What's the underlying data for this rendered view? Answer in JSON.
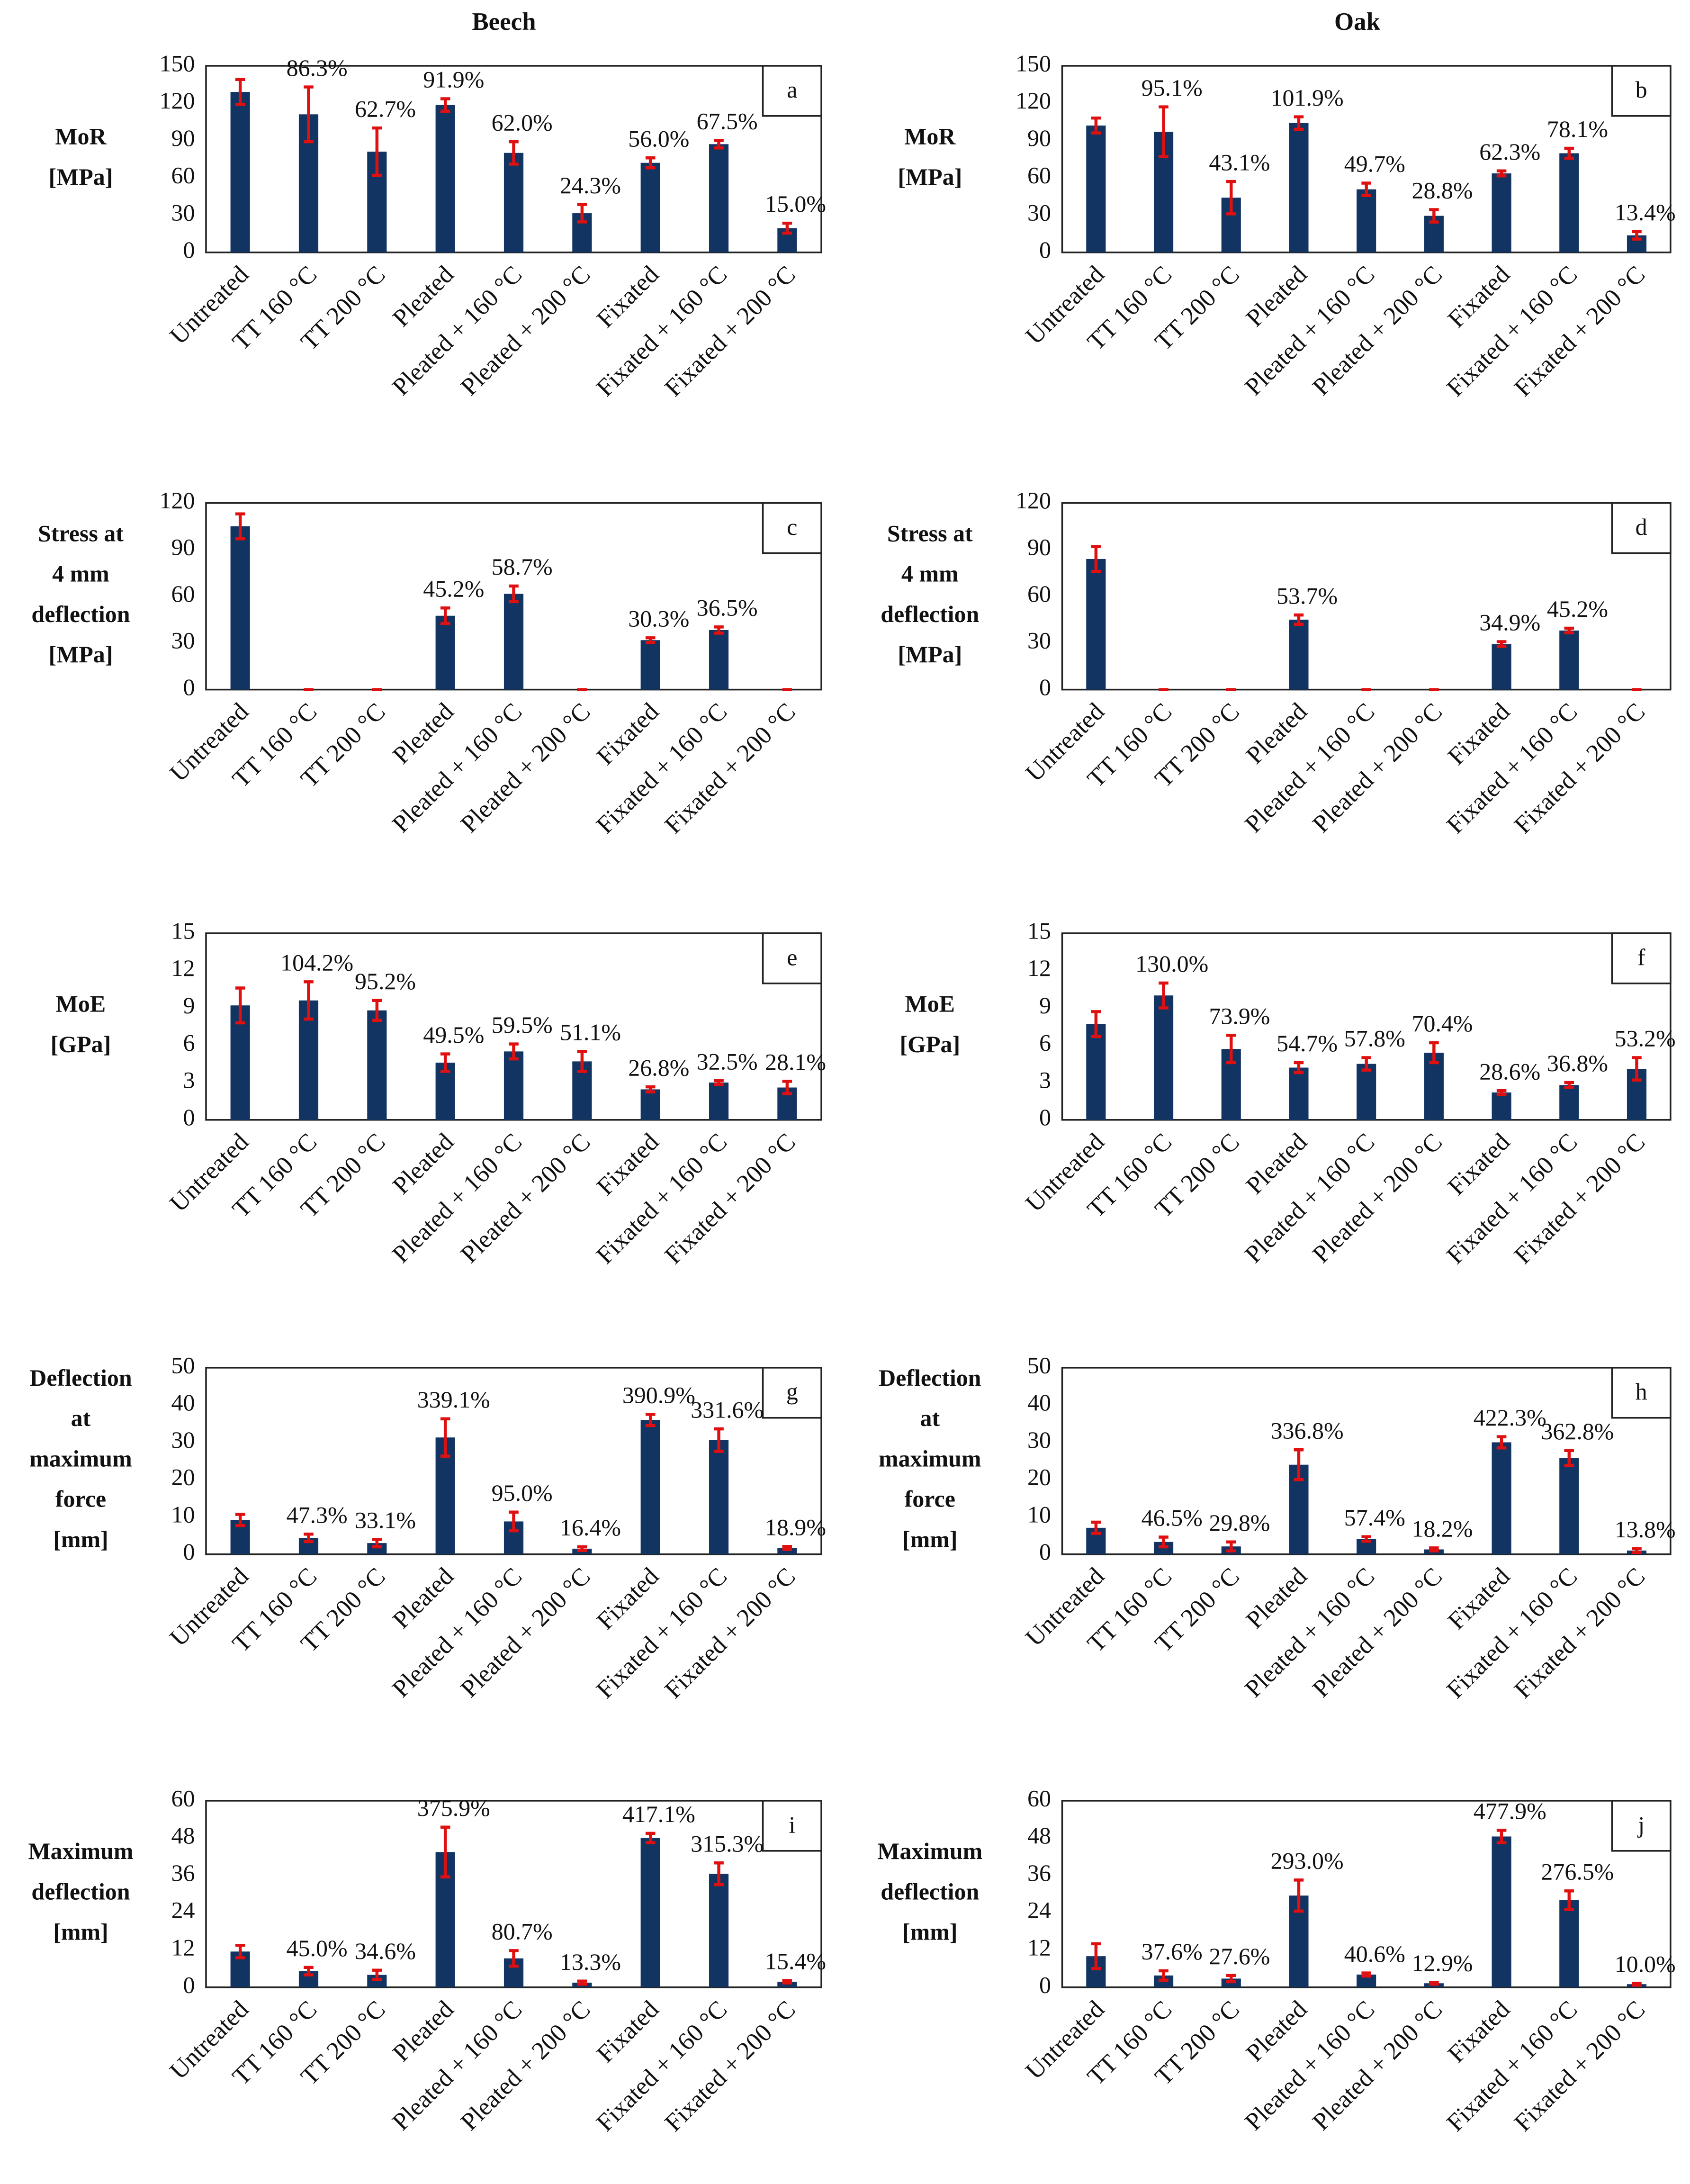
{
  "column_titles": [
    "Beech",
    "Oak"
  ],
  "chart_data": [
    {
      "type": "bar",
      "ylabel": [
        "MoR",
        "[MPa]"
      ],
      "panel_label": "a",
      "categories": [
        "Untreated",
        "TT 160 °C",
        "TT 200 °C",
        "Pleated",
        "Pleated + 160 °C",
        "Pleated + 200 °C",
        "Fixated",
        "Fixated + 160 °C",
        "Fixated + 200 °C"
      ],
      "values": [
        129,
        111,
        81,
        118.5,
        80,
        31.5,
        72,
        87,
        19.5
      ],
      "errors": [
        10,
        22,
        19,
        5,
        9,
        7,
        4,
        3,
        4
      ],
      "annotations": [
        null,
        "86.3%",
        "62.7%",
        "91.9%",
        "62.0%",
        "24.3%",
        "56.0%",
        "67.5%",
        "15.0%"
      ],
      "color": "#123462",
      "error_color": "#e01010",
      "ylim": [
        0,
        150
      ],
      "yticks": [
        0,
        30,
        60,
        90,
        120,
        150
      ]
    },
    {
      "type": "bar",
      "ylabel": [
        "MoR",
        "[MPa]"
      ],
      "panel_label": "b",
      "categories": [
        "Untreated",
        "TT 160 °C",
        "TT 200 °C",
        "Pleated",
        "Pleated + 160 °C",
        "Pleated + 200 °C",
        "Fixated",
        "Fixated + 160 °C",
        "Fixated + 200 °C"
      ],
      "values": [
        102,
        97,
        44,
        104,
        50.7,
        29.4,
        63.5,
        79.7,
        13.7
      ],
      "errors": [
        6,
        20,
        13,
        5,
        5,
        5,
        2,
        4,
        3
      ],
      "annotations": [
        null,
        "95.1%",
        "43.1%",
        "101.9%",
        "49.7%",
        "28.8%",
        "62.3%",
        "78.1%",
        "13.4%"
      ],
      "color": "#123462",
      "error_color": "#e01010",
      "ylim": [
        0,
        150
      ],
      "yticks": [
        0,
        30,
        60,
        90,
        120,
        150
      ]
    },
    {
      "type": "bar",
      "ylabel": [
        "Stress at",
        "4 mm",
        "deflection",
        "[MPa]"
      ],
      "panel_label": "c",
      "categories": [
        "Untreated",
        "TT 160 °C",
        "TT 200 °C",
        "Pleated",
        "Pleated + 160 °C",
        "Pleated + 200 °C",
        "Fixated",
        "Fixated + 160 °C",
        "Fixated + 200 °C"
      ],
      "values": [
        105,
        0,
        0,
        47.5,
        61.6,
        0,
        31.8,
        38.3,
        0
      ],
      "errors": [
        8,
        0,
        0,
        5,
        5,
        0,
        1.5,
        2,
        0
      ],
      "annotations": [
        null,
        null,
        null,
        "45.2%",
        "58.7%",
        null,
        "30.3%",
        "36.5%",
        null
      ],
      "color": "#123462",
      "error_color": "#e01010",
      "ylim": [
        0,
        120
      ],
      "yticks": [
        0,
        30,
        60,
        90,
        120
      ]
    },
    {
      "type": "bar",
      "ylabel": [
        "Stress at",
        "4 mm",
        "deflection",
        "[MPa]"
      ],
      "panel_label": "d",
      "categories": [
        "Untreated",
        "TT 160 °C",
        "TT 200 °C",
        "Pleated",
        "Pleated + 160 °C",
        "Pleated + 200 °C",
        "Fixated",
        "Fixated + 160 °C",
        "Fixated + 200 °C"
      ],
      "values": [
        84,
        0,
        0,
        45,
        0,
        0,
        29.3,
        38,
        0
      ],
      "errors": [
        8,
        0,
        0,
        3,
        0,
        0,
        1.5,
        1.5,
        0
      ],
      "annotations": [
        null,
        null,
        null,
        "53.7%",
        null,
        null,
        "34.9%",
        "45.2%",
        null
      ],
      "color": "#123462",
      "error_color": "#e01010",
      "ylim": [
        0,
        120
      ],
      "yticks": [
        0,
        30,
        60,
        90,
        120
      ]
    },
    {
      "type": "bar",
      "ylabel": [
        "MoE",
        "[GPa]"
      ],
      "panel_label": "e",
      "categories": [
        "Untreated",
        "TT 160 °C",
        "TT 200 °C",
        "Pleated",
        "Pleated + 160 °C",
        "Pleated + 200 °C",
        "Fixated",
        "Fixated + 160 °C",
        "Fixated + 200 °C"
      ],
      "values": [
        9.2,
        9.6,
        8.8,
        4.6,
        5.5,
        4.7,
        2.45,
        3.0,
        2.6
      ],
      "errors": [
        1.4,
        1.5,
        0.8,
        0.7,
        0.6,
        0.8,
        0.2,
        0.15,
        0.5
      ],
      "annotations": [
        null,
        "104.2%",
        "95.2%",
        "49.5%",
        "59.5%",
        "51.1%",
        "26.8%",
        "32.5%",
        "28.1%"
      ],
      "color": "#123462",
      "error_color": "#e01010",
      "ylim": [
        0,
        15
      ],
      "yticks": [
        0,
        3,
        6,
        9,
        12,
        15
      ]
    },
    {
      "type": "bar",
      "ylabel": [
        "MoE",
        "[GPa]"
      ],
      "panel_label": "f",
      "categories": [
        "Untreated",
        "TT 160 °C",
        "TT 200 °C",
        "Pleated",
        "Pleated + 160 °C",
        "Pleated + 200 °C",
        "Fixated",
        "Fixated + 160 °C",
        "Fixated + 200 °C"
      ],
      "values": [
        7.7,
        10,
        5.7,
        4.2,
        4.5,
        5.4,
        2.2,
        2.8,
        4.1
      ],
      "errors": [
        1,
        1,
        1.1,
        0.4,
        0.5,
        0.8,
        0.15,
        0.2,
        0.9
      ],
      "annotations": [
        null,
        "130.0%",
        "73.9%",
        "54.7%",
        "57.8%",
        "70.4%",
        "28.6%",
        "36.8%",
        "53.2%"
      ],
      "color": "#123462",
      "error_color": "#e01010",
      "ylim": [
        0,
        15
      ],
      "yticks": [
        0,
        3,
        6,
        9,
        12,
        15
      ]
    },
    {
      "type": "bar",
      "ylabel": [
        "Deflection",
        "at",
        "maximum",
        "force",
        "[mm]"
      ],
      "panel_label": "g",
      "categories": [
        "Untreated",
        "TT 160 °C",
        "TT 200 °C",
        "Pleated",
        "Pleated + 160 °C",
        "Pleated + 200 °C",
        "Fixated",
        "Fixated + 160 °C",
        "Fixated + 200 °C"
      ],
      "values": [
        9.2,
        4.4,
        3,
        31.3,
        8.8,
        1.5,
        36,
        30.6,
        1.7
      ],
      "errors": [
        1.5,
        1,
        1,
        5,
        2.5,
        0.5,
        1.5,
        3,
        0.4
      ],
      "annotations": [
        null,
        "47.3%",
        "33.1%",
        "339.1%",
        "95.0%",
        "16.4%",
        "390.9%",
        "331.6%",
        "18.9%"
      ],
      "color": "#123462",
      "error_color": "#e01010",
      "ylim": [
        0,
        50
      ],
      "yticks": [
        0,
        10,
        20,
        30,
        40,
        50
      ]
    },
    {
      "type": "bar",
      "ylabel": [
        "Deflection",
        "at",
        "maximum",
        "force",
        "[mm]"
      ],
      "panel_label": "h",
      "categories": [
        "Untreated",
        "TT 160 °C",
        "TT 200 °C",
        "Pleated",
        "Pleated + 160 °C",
        "Pleated + 200 °C",
        "Fixated",
        "Fixated + 160 °C",
        "Fixated + 200 °C"
      ],
      "values": [
        7.1,
        3.3,
        2.1,
        24,
        4.1,
        1.3,
        30,
        25.8,
        1
      ],
      "errors": [
        1.5,
        1.3,
        1.2,
        4,
        0.6,
        0.4,
        1.5,
        2,
        0.5
      ],
      "annotations": [
        null,
        "46.5%",
        "29.8%",
        "336.8%",
        "57.4%",
        "18.2%",
        "422.3%",
        "362.8%",
        "13.8%"
      ],
      "color": "#123462",
      "error_color": "#e01010",
      "ylim": [
        0,
        50
      ],
      "yticks": [
        0,
        10,
        20,
        30,
        40,
        50
      ]
    },
    {
      "type": "bar",
      "ylabel": [
        "Maximum",
        "deflection",
        "[mm]"
      ],
      "panel_label": "i",
      "categories": [
        "Untreated",
        "TT 160 °C",
        "TT 200 °C",
        "Pleated",
        "Pleated + 160 °C",
        "Pleated + 200 °C",
        "Fixated",
        "Fixated + 160 °C",
        "Fixated + 200 °C"
      ],
      "values": [
        11.5,
        5.2,
        4,
        43.5,
        9.3,
        1.5,
        48,
        36.5,
        1.8
      ],
      "errors": [
        2,
        1.2,
        1.5,
        8,
        2.5,
        0.5,
        1.5,
        3.5,
        0.4
      ],
      "annotations": [
        null,
        "45.0%",
        "34.6%",
        "375.9%",
        "80.7%",
        "13.3%",
        "417.1%",
        "315.3%",
        "15.4%"
      ],
      "color": "#123462",
      "error_color": "#e01010",
      "ylim": [
        0,
        60
      ],
      "yticks": [
        0,
        12,
        24,
        36,
        48,
        60
      ]
    },
    {
      "type": "bar",
      "ylabel": [
        "Maximum",
        "deflection",
        "[mm]"
      ],
      "panel_label": "j",
      "categories": [
        "Untreated",
        "TT 160 °C",
        "TT 200 °C",
        "Pleated",
        "Pleated + 160 °C",
        "Pleated + 200 °C",
        "Fixated",
        "Fixated + 160 °C",
        "Fixated + 200 °C"
      ],
      "values": [
        10,
        3.8,
        2.8,
        29.5,
        4.1,
        1.3,
        48.5,
        28,
        1
      ],
      "errors": [
        4,
        1.5,
        1,
        5,
        0.5,
        0.3,
        2,
        3,
        0.3
      ],
      "annotations": [
        null,
        "37.6%",
        "27.6%",
        "293.0%",
        "40.6%",
        "12.9%",
        "477.9%",
        "276.5%",
        "10.0%"
      ],
      "color": "#123462",
      "error_color": "#e01010",
      "ylim": [
        0,
        60
      ],
      "yticks": [
        0,
        12,
        24,
        36,
        48,
        60
      ]
    }
  ]
}
